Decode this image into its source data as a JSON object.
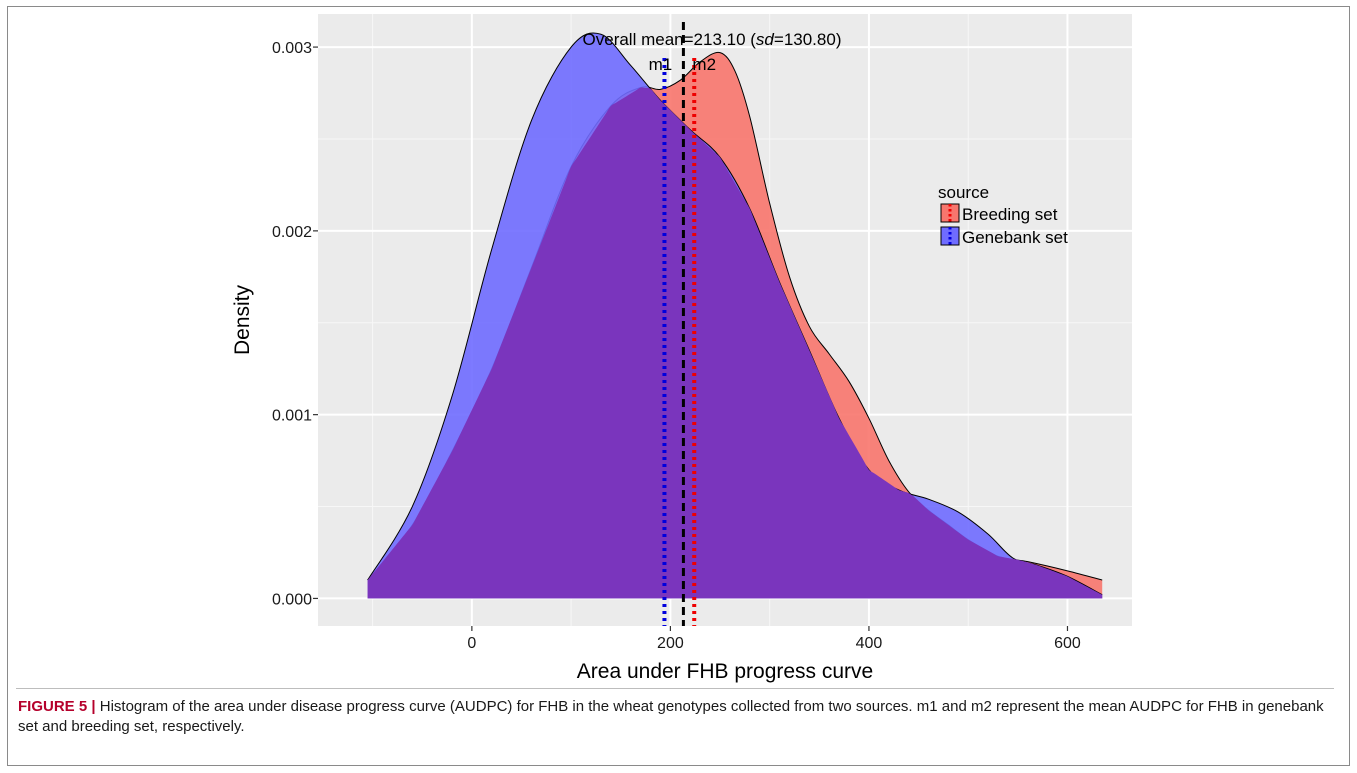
{
  "figure": {
    "label": "FIGURE 5",
    "separator": "|",
    "caption": "Histogram of the area under disease progress curve (AUDPC) for FHB in the wheat genotypes collected from two sources. m1 and m2 represent the mean AUDPC for FHB in genebank set and breeding set, respectively."
  },
  "chart_data": {
    "type": "area",
    "xlabel": "Area under FHB progress curve",
    "ylabel": "Density",
    "xlim": [
      -155,
      665
    ],
    "ylim": [
      -0.00015,
      0.00318
    ],
    "x_ticks": [
      0,
      200,
      400,
      600
    ],
    "y_ticks": [
      0.0,
      0.001,
      0.002,
      0.003
    ],
    "y_tick_labels": [
      "0.000",
      "0.001",
      "0.002",
      "0.003"
    ],
    "grid": true,
    "legend": {
      "title": "source",
      "position": "right",
      "entries": [
        {
          "name": "Breeding set",
          "color": "#f8766d"
        },
        {
          "name": "Genebank set",
          "color": "#6f6cff"
        }
      ]
    },
    "annotation": {
      "prefix": "Overall mean=213.10 (",
      "italic": "sd",
      "suffix": "=130.80)"
    },
    "vlines": [
      {
        "label": "m1",
        "x": 194,
        "color": "#0000dd",
        "style": "dotted"
      },
      {
        "label": "",
        "x": 213.1,
        "color": "#000000",
        "style": "dashed"
      },
      {
        "label": "m2",
        "x": 224,
        "color": "#ee0000",
        "style": "dotted"
      }
    ],
    "series": [
      {
        "name": "Breeding set",
        "color": "#f8766d",
        "x": [
          -105,
          -60,
          -20,
          20,
          60,
          100,
          140,
          170,
          190,
          210,
          230,
          250,
          265,
          280,
          300,
          320,
          340,
          360,
          380,
          400,
          420,
          440,
          460,
          480,
          500,
          530,
          560,
          600,
          635
        ],
        "y": [
          0.0001,
          0.0004,
          0.0008,
          0.00125,
          0.0018,
          0.00235,
          0.00268,
          0.00278,
          0.00277,
          0.00282,
          0.00292,
          0.00297,
          0.00287,
          0.00262,
          0.00215,
          0.00175,
          0.00148,
          0.00133,
          0.00118,
          0.00098,
          0.00075,
          0.00058,
          0.00048,
          0.0004,
          0.00032,
          0.00023,
          0.0002,
          0.00015,
          0.0001
        ]
      },
      {
        "name": "Genebank set",
        "color": "#6f6cff",
        "x": [
          -105,
          -60,
          -20,
          20,
          60,
          100,
          130,
          160,
          190,
          220,
          250,
          280,
          310,
          340,
          370,
          400,
          430,
          460,
          490,
          520,
          545,
          570,
          600,
          635
        ],
        "y": [
          0.0001,
          0.0005,
          0.0011,
          0.0019,
          0.0026,
          0.003,
          0.00307,
          0.0029,
          0.00271,
          0.00255,
          0.0024,
          0.00212,
          0.00172,
          0.00135,
          0.00098,
          0.0007,
          0.00059,
          0.00054,
          0.00047,
          0.00035,
          0.00022,
          0.00018,
          0.00012,
          2e-05
        ]
      }
    ]
  }
}
